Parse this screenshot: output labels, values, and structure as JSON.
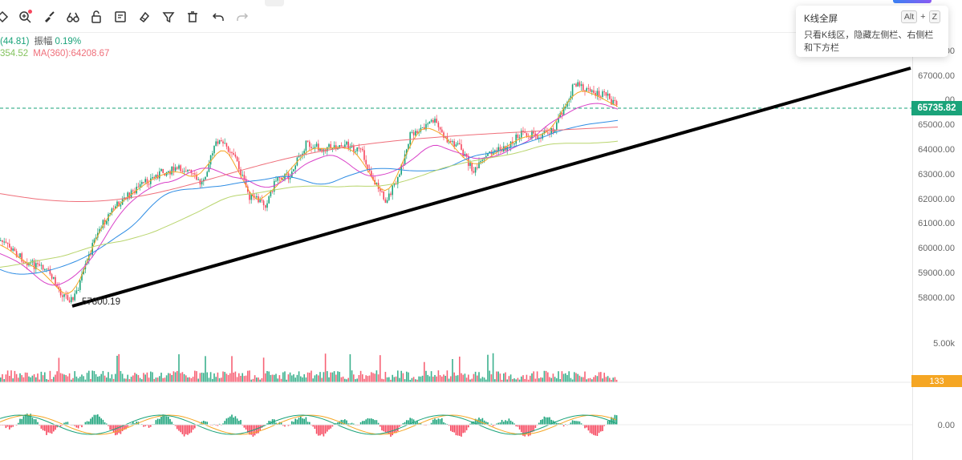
{
  "toolbar": {
    "icons": [
      "cursor-icon",
      "zoom-in-icon",
      "brush-icon",
      "binoculars-icon",
      "lock-icon",
      "edit-list-icon",
      "magnet-icon",
      "filter-icon",
      "trash-icon",
      "undo-icon",
      "redo-icon"
    ]
  },
  "info": {
    "change": "(44.81)",
    "amplitude_label": "振幅",
    "amplitude_value": "0.19%",
    "ma_partial": "354.52",
    "ma360": "MA(360):64208.67"
  },
  "price_axis": {
    "labels": [
      "67000.00",
      "65000.00",
      "64000.00",
      "63000.00",
      "62000.00",
      "61000.00",
      "60000.00",
      "59000.00",
      "58000.00"
    ],
    "partial_labels": [
      "00",
      "00"
    ],
    "current_price": "65735.82",
    "volume_label": "5.00k",
    "volume_tag": "133",
    "macd_zero": "0.00"
  },
  "annotations": {
    "low_price": "57800.19"
  },
  "tooltip": {
    "title": "K线全屏",
    "key1": "Alt",
    "plus": "+",
    "key2": "Z",
    "description": "只看K线区，隐藏左侧栏、右侧栏和下方栏"
  },
  "colors": {
    "up": "#1aa37a",
    "down": "#f6465d",
    "ma_orange": "#f5a623",
    "ma_pink": "#d940c8",
    "ma_blue": "#2f8de4",
    "ma_green": "#b9d56e",
    "ma_red": "#ef6f7a",
    "trendline": "#000000"
  }
}
